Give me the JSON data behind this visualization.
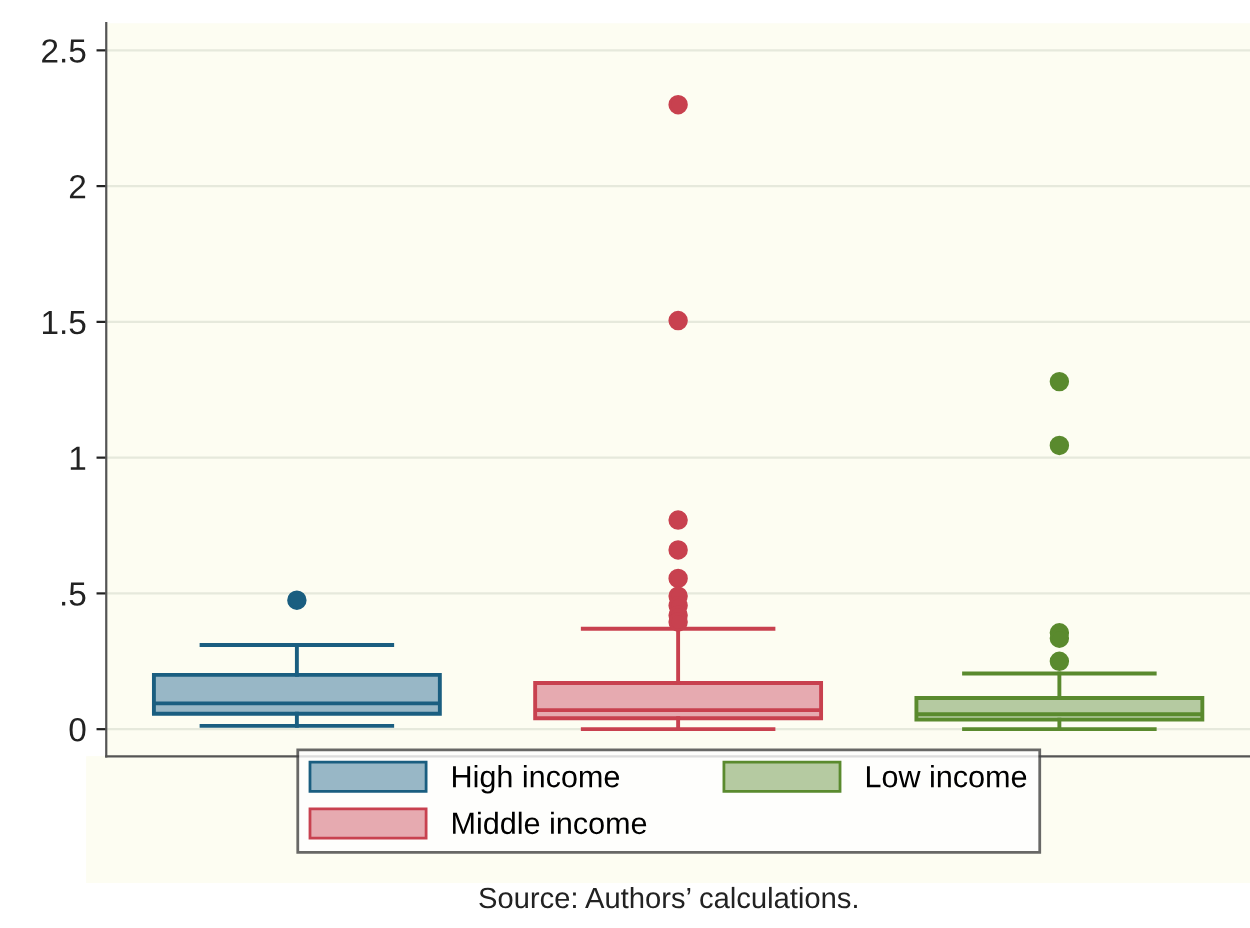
{
  "chart_data": {
    "type": "box",
    "categories": [
      null,
      null,
      null
    ],
    "series": [
      {
        "name": "High income",
        "color": "#1a5e80",
        "boxes": [
          {
            "low": 0.012,
            "q1": 0.057,
            "median": 0.095,
            "q3": 0.2,
            "high": 0.31,
            "outliers": [
              0.475
            ]
          },
          null,
          null
        ]
      },
      {
        "name": "Middle income",
        "color": "#c8414f",
        "boxes": [
          null,
          {
            "low": 0,
            "q1": 0.04,
            "median": 0.07,
            "q3": 0.17,
            "high": 0.37,
            "outliers": [
              2.3,
              1.505,
              0.77,
              0.66,
              0.555,
              0.49,
              0.455,
              0.42,
              0.395
            ]
          },
          null
        ]
      },
      {
        "name": "Low income",
        "color": "#5a8a2e",
        "boxes": [
          null,
          null,
          {
            "low": 0,
            "q1": 0.035,
            "median": 0.055,
            "q3": 0.115,
            "high": 0.205,
            "outliers": [
              1.28,
              1.045,
              0.355,
              0.335,
              0.25
            ]
          }
        ]
      }
    ],
    "ylim": [
      -0.1,
      2.6
    ],
    "yticks": [
      0,
      {
        "value": 0.5,
        "label": ".5"
      },
      1,
      1.5,
      2,
      2.5
    ],
    "grid": "y",
    "legend": "bottom",
    "annotations": [
      "Source: Authors’ calculations."
    ]
  }
}
